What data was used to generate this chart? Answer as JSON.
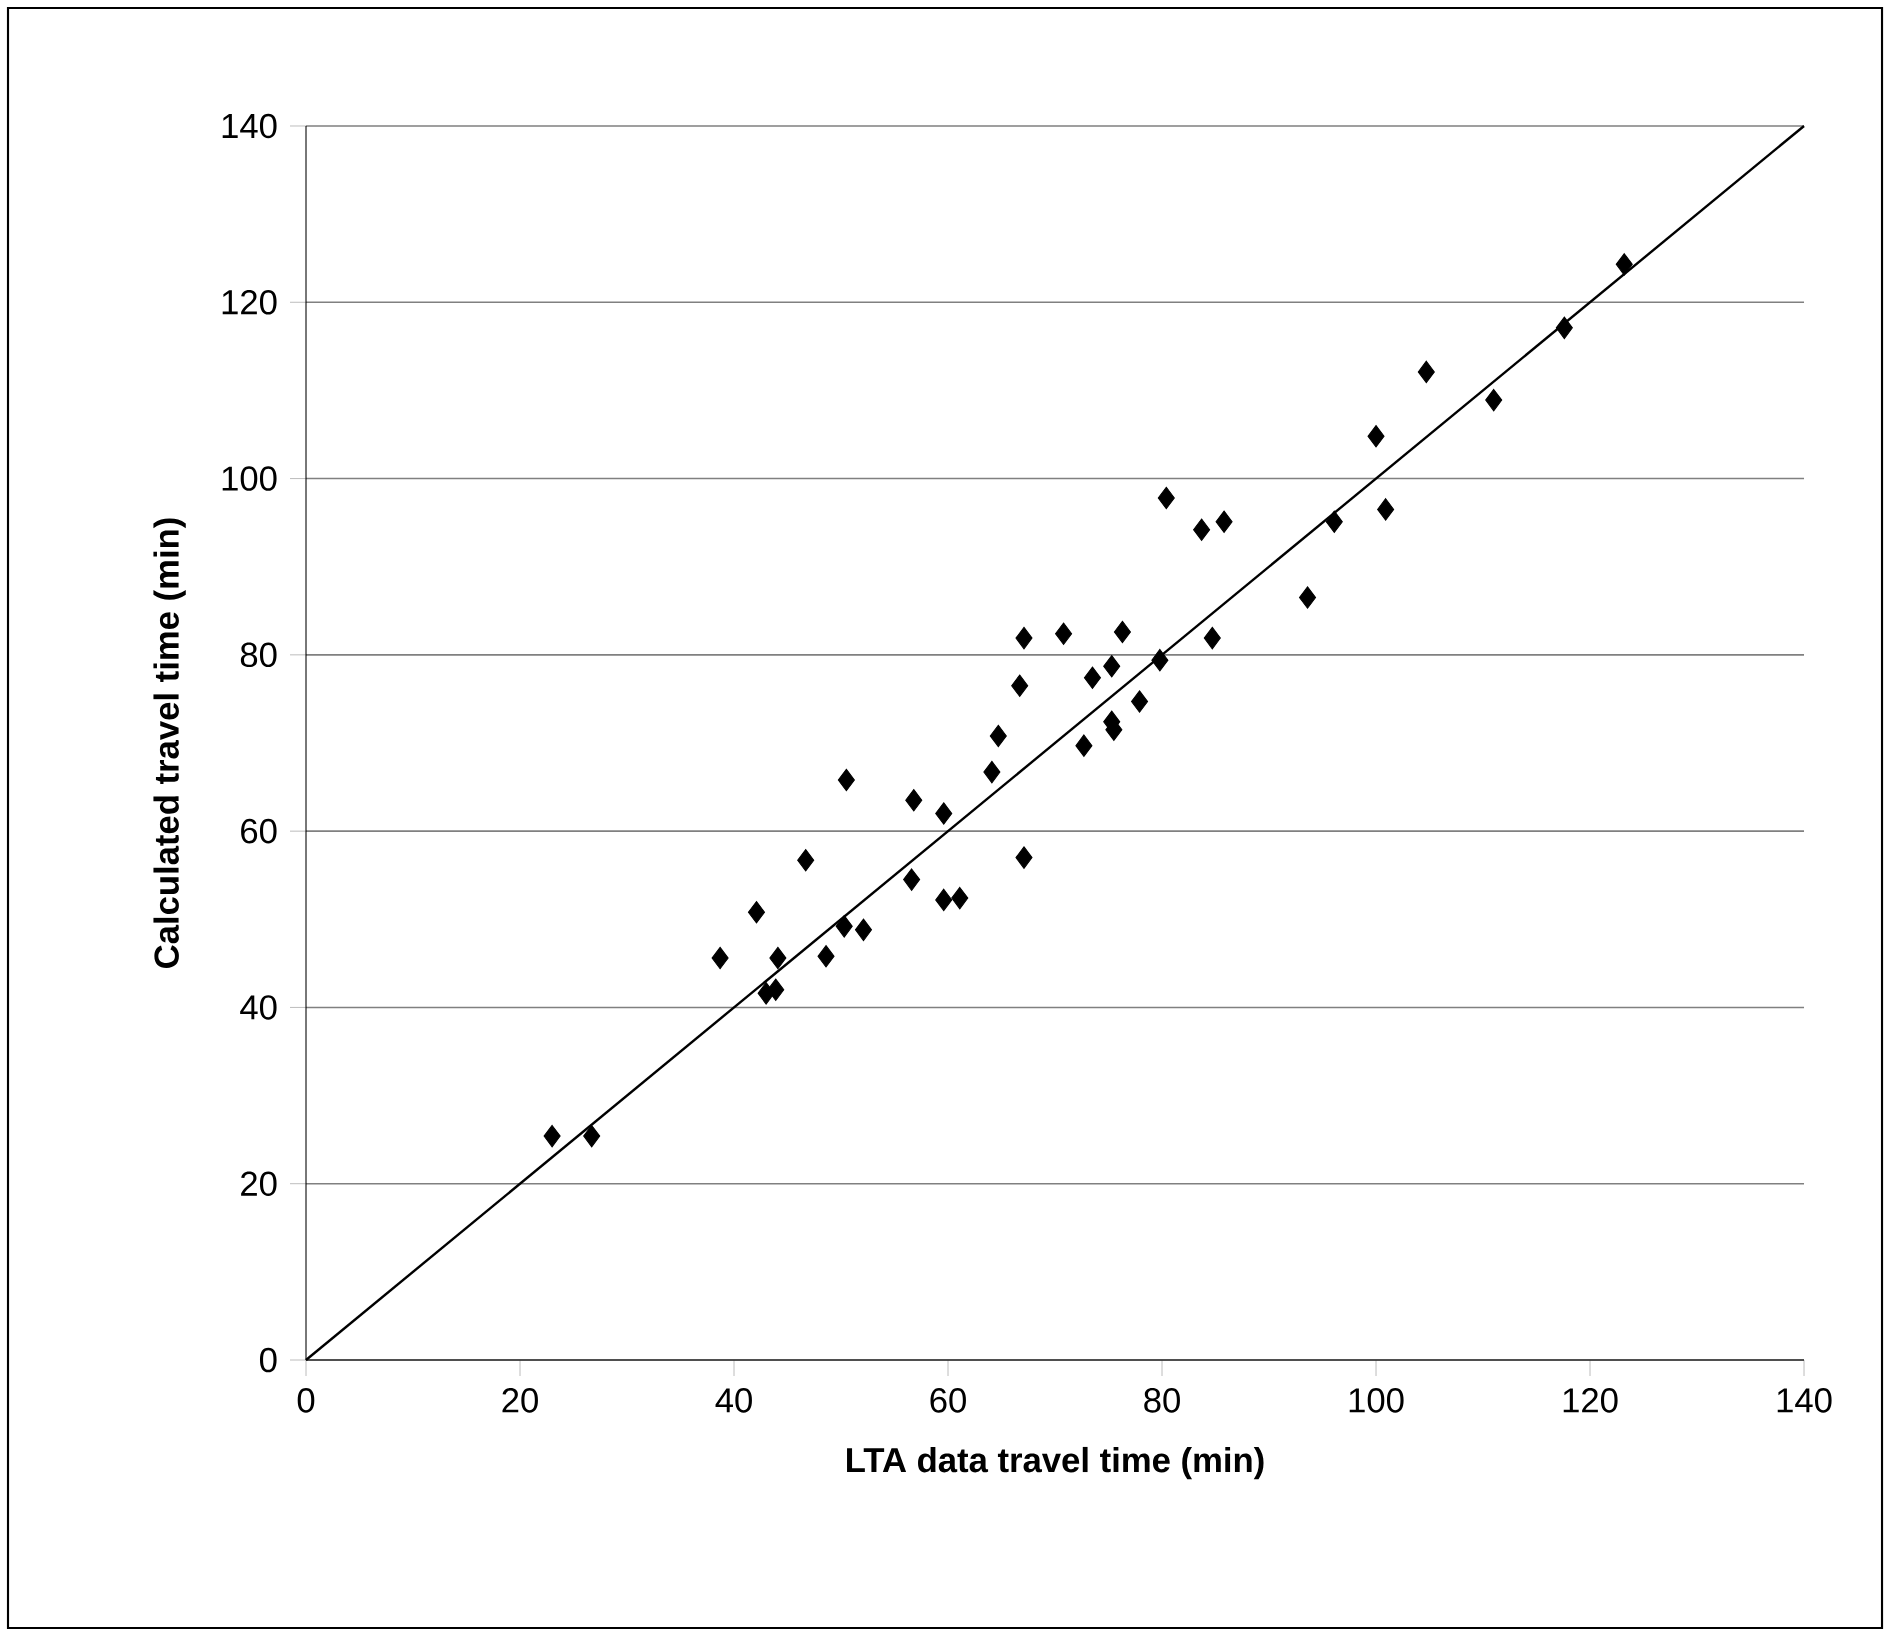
{
  "chart_data": {
    "type": "scatter",
    "xlabel": "LTA data travel time (min)",
    "ylabel": "Calculated travel time (min)",
    "xlim": [
      0,
      140
    ],
    "ylim": [
      0,
      140
    ],
    "xticks": [
      0,
      20,
      40,
      60,
      80,
      100,
      120,
      140
    ],
    "yticks": [
      0,
      20,
      40,
      60,
      80,
      100,
      120,
      140
    ],
    "grid": "y",
    "marker": "diamond",
    "series": [
      {
        "color": "#000000",
        "x": [
          23,
          26.7,
          38.7,
          42.1,
          43,
          43.9,
          44.1,
          46.7,
          48.6,
          50.3,
          50.5,
          52.1,
          56.6,
          56.8,
          59.6,
          59.6,
          61.1,
          64.1,
          64.7,
          66.7,
          67.1,
          67.1,
          70.8,
          72.7,
          73.5,
          75.3,
          75.3,
          75.5,
          76.3,
          77.9,
          79.8,
          80.4,
          83.7,
          84.7,
          85.8,
          93.6,
          96.1,
          100,
          100.9,
          104.7,
          111,
          117.6,
          123.2
        ],
        "values": [
          25.4,
          25.4,
          45.6,
          50.8,
          41.6,
          42,
          45.6,
          56.7,
          45.8,
          49.2,
          65.8,
          48.8,
          54.5,
          63.5,
          62,
          52.2,
          52.4,
          66.7,
          70.8,
          76.5,
          81.9,
          57,
          82.4,
          69.7,
          77.4,
          78.7,
          72.4,
          71.5,
          82.6,
          74.7,
          79.4,
          97.8,
          94.2,
          81.9,
          95.1,
          86.5,
          95.1,
          104.8,
          96.5,
          112.1,
          108.9,
          117.1,
          124.3
        ]
      },
      {
        "type": "line",
        "color": "#000000",
        "marker": "none",
        "x": [
          0,
          140
        ],
        "values": [
          0,
          140
        ]
      }
    ]
  }
}
